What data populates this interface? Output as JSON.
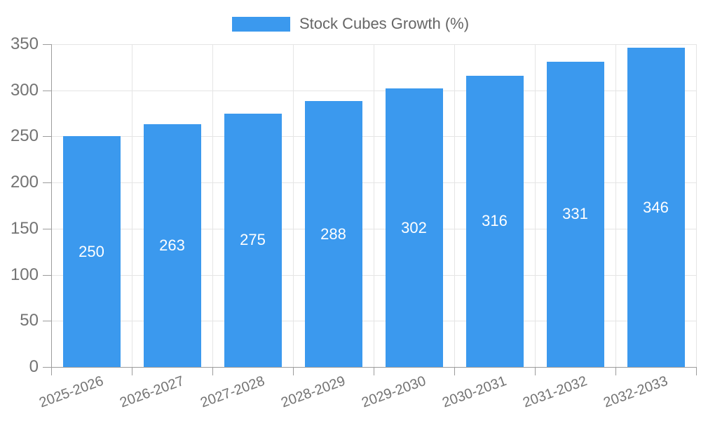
{
  "chart_data": {
    "type": "bar",
    "title": "",
    "series_name": "Stock Cubes Growth (%)",
    "categories": [
      "2025-2026",
      "2026-2027",
      "2027-2028",
      "2028-2029",
      "2029-2030",
      "2030-2031",
      "2031-2032",
      "2032-2033"
    ],
    "values": [
      250,
      263,
      275,
      288,
      302,
      316,
      331,
      346
    ],
    "value_labels": [
      "250",
      "263",
      "275",
      "288",
      "302",
      "316",
      "331",
      "346"
    ],
    "xlabel": "",
    "ylabel": "",
    "ylim": [
      0,
      350
    ],
    "ytick_step": 50,
    "yticks": [
      0,
      50,
      100,
      150,
      200,
      250,
      300,
      350
    ],
    "ytick_labels": [
      "0",
      "50",
      "100",
      "150",
      "200",
      "250",
      "300",
      "350"
    ],
    "legend_position": "top",
    "grid": true,
    "colors": {
      "bar": "#3b99ee",
      "bar_value_text": "#ffffff",
      "axis_label_text": "#737373",
      "legend_text": "#666666",
      "gridline": "#e5e5e5",
      "axis_line": "#9c9c9c",
      "background": "#ffffff"
    }
  }
}
